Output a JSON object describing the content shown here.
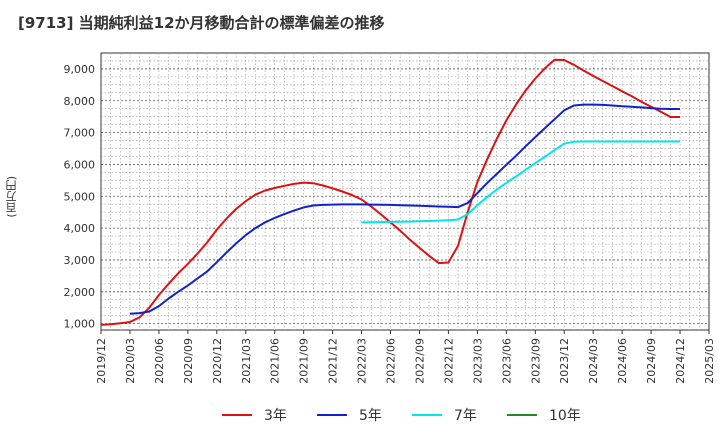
{
  "chart_data": {
    "type": "line",
    "title": "[9713]  当期純利益12か月移動合計の標準偏差の推移",
    "ylabel": "(百万円)",
    "xlabel": "",
    "ylim": [
      800,
      9500
    ],
    "yticks": [
      1000,
      2000,
      3000,
      4000,
      5000,
      6000,
      7000,
      8000,
      9000
    ],
    "ytick_labels": [
      "1,000",
      "2,000",
      "3,000",
      "4,000",
      "5,000",
      "6,000",
      "7,000",
      "8,000",
      "9,000"
    ],
    "xlim": [
      "2019-12",
      "2025-03"
    ],
    "x_tick_labels": [
      "2019/12",
      "2020/03",
      "2020/06",
      "2020/09",
      "2020/12",
      "2021/03",
      "2021/06",
      "2021/09",
      "2021/12",
      "2022/03",
      "2022/06",
      "2022/09",
      "2022/12",
      "2023/03",
      "2023/06",
      "2023/09",
      "2023/12",
      "2024/03",
      "2024/06",
      "2024/09",
      "2024/12",
      "2025/03"
    ],
    "grid": true,
    "legend_position": "bottom",
    "series": [
      {
        "name": "3年",
        "color": "#dd1111",
        "x": [
          "2019-12",
          "2020-01",
          "2020-02",
          "2020-03",
          "2020-04",
          "2020-05",
          "2020-06",
          "2020-07",
          "2020-08",
          "2020-09",
          "2020-10",
          "2020-11",
          "2020-12",
          "2021-01",
          "2021-02",
          "2021-03",
          "2021-04",
          "2021-05",
          "2021-06",
          "2021-07",
          "2021-08",
          "2021-09",
          "2021-10",
          "2021-11",
          "2021-12",
          "2022-01",
          "2022-02",
          "2022-03",
          "2022-04",
          "2022-05",
          "2022-06",
          "2022-07",
          "2022-08",
          "2022-09",
          "2022-10",
          "2022-11",
          "2022-12",
          "2023-01",
          "2023-02",
          "2023-03",
          "2023-04",
          "2023-05",
          "2023-06",
          "2023-07",
          "2023-08",
          "2023-09",
          "2023-10",
          "2023-11",
          "2023-12",
          "2024-01",
          "2024-02",
          "2024-03",
          "2024-04",
          "2024-05",
          "2024-06",
          "2024-07",
          "2024-08",
          "2024-09",
          "2024-10",
          "2024-11",
          "2024-12"
        ],
        "values": [
          960,
          980,
          1010,
          1050,
          1200,
          1500,
          1900,
          2250,
          2580,
          2880,
          3200,
          3550,
          3950,
          4300,
          4600,
          4850,
          5050,
          5180,
          5260,
          5330,
          5390,
          5430,
          5410,
          5340,
          5250,
          5150,
          5040,
          4900,
          4680,
          4430,
          4180,
          3920,
          3640,
          3380,
          3130,
          2900,
          2920,
          3450,
          4500,
          5450,
          6150,
          6800,
          7380,
          7880,
          8320,
          8700,
          9020,
          9290,
          9280,
          9130,
          8950,
          8780,
          8620,
          8460,
          8300,
          8140,
          7970,
          7810,
          7660,
          7490,
          7490
        ]
      },
      {
        "name": "5年",
        "color": "#1122cc",
        "x": [
          "2020-03",
          "2020-04",
          "2020-05",
          "2020-06",
          "2020-07",
          "2020-08",
          "2020-09",
          "2020-10",
          "2020-11",
          "2020-12",
          "2021-01",
          "2021-02",
          "2021-03",
          "2021-04",
          "2021-05",
          "2021-06",
          "2021-07",
          "2021-08",
          "2021-09",
          "2021-10",
          "2021-11",
          "2021-12",
          "2022-01",
          "2022-02",
          "2022-03",
          "2022-04",
          "2022-05",
          "2022-06",
          "2022-07",
          "2022-08",
          "2022-09",
          "2022-10",
          "2022-11",
          "2022-12",
          "2023-01",
          "2023-02",
          "2023-03",
          "2023-04",
          "2023-05",
          "2023-06",
          "2023-07",
          "2023-08",
          "2023-09",
          "2023-10",
          "2023-11",
          "2023-12",
          "2024-01",
          "2024-02",
          "2024-03",
          "2024-04",
          "2024-05",
          "2024-06",
          "2024-07",
          "2024-08",
          "2024-09",
          "2024-10",
          "2024-11",
          "2024-12"
        ],
        "values": [
          1310,
          1330,
          1380,
          1550,
          1790,
          2000,
          2200,
          2420,
          2640,
          2930,
          3230,
          3520,
          3780,
          4000,
          4180,
          4320,
          4440,
          4550,
          4650,
          4710,
          4730,
          4740,
          4745,
          4745,
          4745,
          4740,
          4735,
          4730,
          4720,
          4710,
          4700,
          4690,
          4680,
          4670,
          4660,
          4790,
          5100,
          5410,
          5700,
          5990,
          6270,
          6570,
          6860,
          7140,
          7420,
          7700,
          7850,
          7880,
          7880,
          7870,
          7850,
          7830,
          7810,
          7790,
          7770,
          7750,
          7740,
          7740
        ]
      },
      {
        "name": "7年",
        "color": "#00e5ee",
        "x": [
          "2022-03",
          "2022-04",
          "2022-05",
          "2022-06",
          "2022-07",
          "2022-08",
          "2022-09",
          "2022-10",
          "2022-11",
          "2022-12",
          "2023-01",
          "2023-02",
          "2023-03",
          "2023-04",
          "2023-05",
          "2023-06",
          "2023-07",
          "2023-08",
          "2023-09",
          "2023-10",
          "2023-11",
          "2023-12",
          "2024-01",
          "2024-02",
          "2024-03",
          "2024-04",
          "2024-05",
          "2024-06",
          "2024-07",
          "2024-08",
          "2024-09",
          "2024-10",
          "2024-11",
          "2024-12"
        ],
        "values": [
          4180,
          4185,
          4190,
          4195,
          4200,
          4205,
          4215,
          4225,
          4235,
          4250,
          4270,
          4440,
          4720,
          4970,
          5210,
          5420,
          5620,
          5830,
          6040,
          6240,
          6450,
          6650,
          6710,
          6720,
          6720,
          6720,
          6720,
          6720,
          6720,
          6720,
          6720,
          6720,
          6720,
          6720
        ]
      },
      {
        "name": "10年",
        "color": "#228b22",
        "x": [],
        "values": []
      }
    ]
  }
}
